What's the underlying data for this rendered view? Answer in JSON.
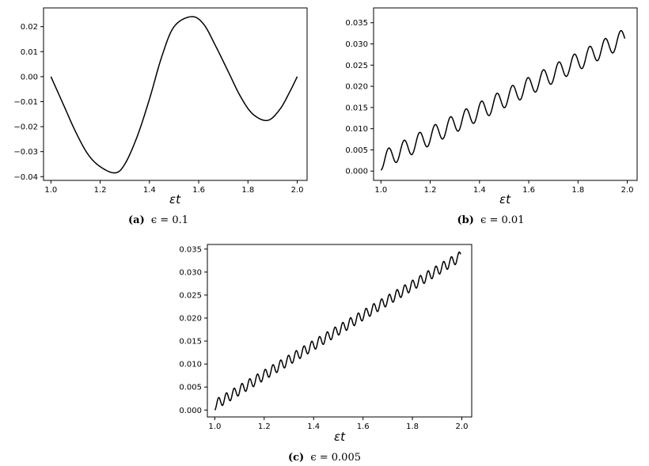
{
  "chart_data": [
    {
      "type": "line",
      "xlabel": "εt",
      "caption_tag": "(a)",
      "caption_text": "ϵ = 0.1",
      "xlim": [
        0.97,
        2.04
      ],
      "ylim": [
        -0.0415,
        0.0275
      ],
      "xticks": [
        1.0,
        1.2,
        1.4,
        1.6,
        1.8,
        2.0
      ],
      "xtick_labels": [
        "1.0",
        "1.2",
        "1.4",
        "1.6",
        "1.8",
        "2.0"
      ],
      "yticks": [
        -0.04,
        -0.03,
        -0.02,
        -0.01,
        0.0,
        0.01,
        0.02
      ],
      "ytick_labels": [
        "−0.04",
        "−0.03",
        "−0.02",
        "−0.01",
        "0.00",
        "0.01",
        "0.02"
      ],
      "series": [
        {
          "x": [
            1.0,
            1.05,
            1.1,
            1.15,
            1.2,
            1.26,
            1.3,
            1.35,
            1.4,
            1.45,
            1.5,
            1.57,
            1.62,
            1.67,
            1.72,
            1.77,
            1.82,
            1.88,
            1.93,
            1.97,
            2.0
          ],
          "y": [
            0.0,
            -0.011,
            -0.022,
            -0.031,
            -0.036,
            -0.0385,
            -0.035,
            -0.024,
            -0.009,
            0.008,
            0.02,
            0.024,
            0.021,
            0.012,
            0.002,
            -0.008,
            -0.015,
            -0.0175,
            -0.013,
            -0.006,
            0.0
          ]
        }
      ]
    },
    {
      "type": "line",
      "xlabel": "εt",
      "caption_tag": "(b)",
      "caption_text": "ϵ = 0.01",
      "xlim": [
        0.97,
        2.04
      ],
      "ylim": [
        -0.0022,
        0.0385
      ],
      "xticks": [
        1.0,
        1.2,
        1.4,
        1.6,
        1.8,
        2.0
      ],
      "xtick_labels": [
        "1.0",
        "1.2",
        "1.4",
        "1.6",
        "1.8",
        "2.0"
      ],
      "yticks": [
        0.0,
        0.005,
        0.01,
        0.015,
        0.02,
        0.025,
        0.03,
        0.035
      ],
      "ytick_labels": [
        "0.000",
        "0.005",
        "0.010",
        "0.015",
        "0.020",
        "0.025",
        "0.030",
        "0.035"
      ],
      "curve_model": {
        "x_start": 1.0,
        "x_end": 1.99,
        "slope": 0.0294,
        "offset": 0.00235,
        "amplitude": 0.00215,
        "period": 0.0628
      }
    },
    {
      "type": "line",
      "xlabel": "εt",
      "caption_tag": "(c)",
      "caption_text": "ϵ = 0.005",
      "xlim": [
        0.97,
        2.04
      ],
      "ylim": [
        -0.0015,
        0.036
      ],
      "xticks": [
        1.0,
        1.2,
        1.4,
        1.6,
        1.8,
        2.0
      ],
      "xtick_labels": [
        "1.0",
        "1.2",
        "1.4",
        "1.6",
        "1.8",
        "2.0"
      ],
      "yticks": [
        0.0,
        0.005,
        0.01,
        0.015,
        0.02,
        0.025,
        0.03,
        0.035
      ],
      "ytick_labels": [
        "0.000",
        "0.005",
        "0.010",
        "0.015",
        "0.020",
        "0.025",
        "0.030",
        "0.035"
      ],
      "curve_model": {
        "x_start": 1.0,
        "x_end": 1.995,
        "slope": 0.0325,
        "offset": 0.0011,
        "amplitude": 0.0011,
        "period": 0.0314
      }
    }
  ]
}
